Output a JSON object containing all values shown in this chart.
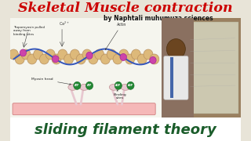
{
  "bg_color": "#e8e4d8",
  "title_text": "Skeletal Muscle contraction",
  "title_color": "#cc0000",
  "subtitle_text": "by Naphtali muhumuza sciences",
  "subtitle_color": "#111111",
  "bottom_text": "sliding filament theory",
  "bottom_color": "#1a5c2a",
  "diagram_bg": "#f5f5ee",
  "actin_color": "#ddb97a",
  "actin_outline": "#b89060",
  "wave_color": "#3355bb",
  "tropomyosin_color": "#cc44aa",
  "myosin_head_color": "#e8c8d0",
  "myosin_stem_color": "#e8c8d0",
  "atp_color": "#228833",
  "base_color": "#f5b8b8",
  "base_outline": "#d08080",
  "annotation_color": "#222222",
  "photo_bg": "#7a6050",
  "photo_skin": "#7a5535",
  "photo_shirt": "#e8e8e8",
  "whiteboard_color": "#d8d4c0",
  "bottom_bg": "#ffffff"
}
